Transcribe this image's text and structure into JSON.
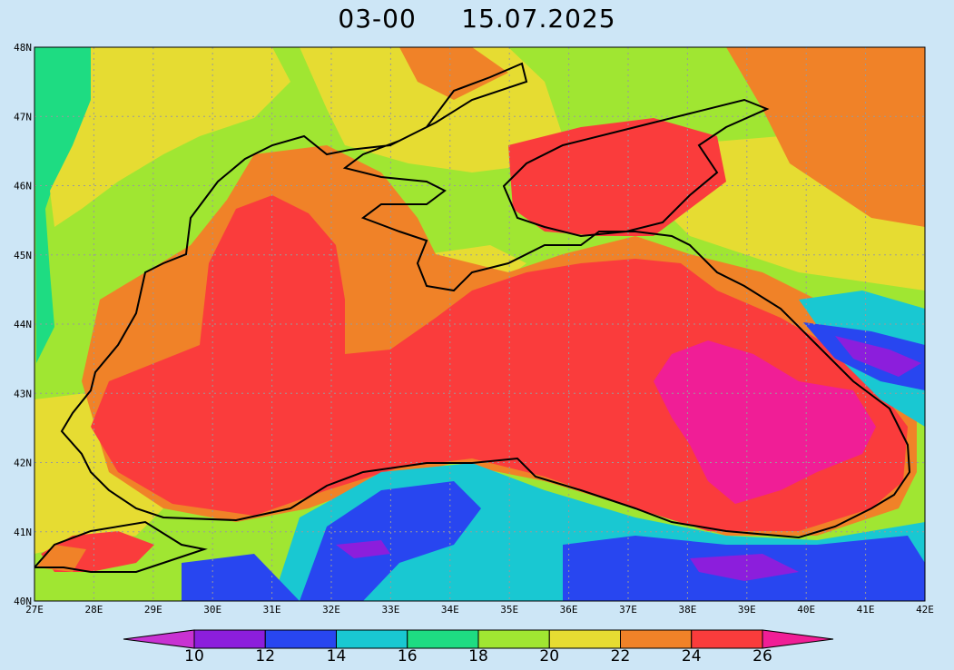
{
  "header": {
    "time": "03-00",
    "date": "15.07.2025"
  },
  "map": {
    "lon_range": [
      27,
      42
    ],
    "lat_range": [
      40,
      48
    ],
    "lon_labels": [
      "27E",
      "28E",
      "29E",
      "30E",
      "31E",
      "32E",
      "33E",
      "34E",
      "35E",
      "36E",
      "37E",
      "38E",
      "39E",
      "40E",
      "41E",
      "42E"
    ],
    "lat_labels": [
      "40N",
      "41N",
      "42N",
      "43N",
      "44N",
      "45N",
      "46N",
      "47N",
      "48N"
    ],
    "grid": true
  },
  "colorbar": {
    "labels": [
      "10",
      "12",
      "14",
      "16",
      "18",
      "20",
      "22",
      "24",
      "26"
    ],
    "bins": [
      {
        "color": "#c832d2"
      },
      {
        "color": "#8c1edc"
      },
      {
        "color": "#2846f0"
      },
      {
        "color": "#19c8d2"
      },
      {
        "color": "#1edc82"
      },
      {
        "color": "#a0e632"
      },
      {
        "color": "#e6dc32"
      },
      {
        "color": "#f08228"
      },
      {
        "color": "#fa3c3c"
      },
      {
        "color": "#f01e96"
      }
    ]
  }
}
